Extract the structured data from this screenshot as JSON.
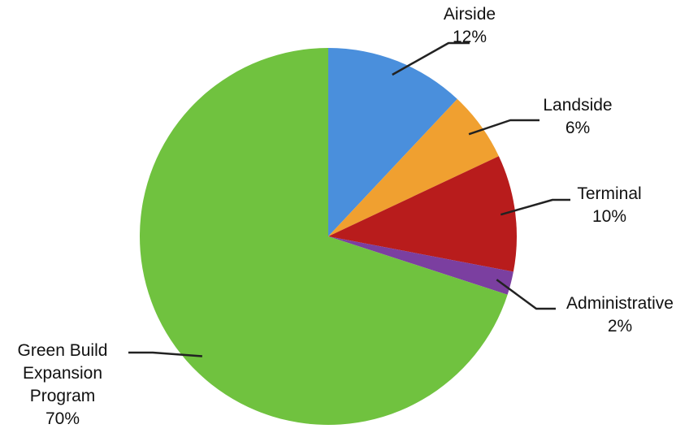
{
  "chart_data": {
    "type": "pie",
    "title": "",
    "start_angle_deg": 90,
    "direction": "clockwise",
    "legend": "none",
    "slices": [
      {
        "label": "Airside",
        "value": 12,
        "value_label": "12%",
        "color": "#4a8fdc"
      },
      {
        "label": "Landside",
        "value": 6,
        "value_label": "6%",
        "color": "#f0a030"
      },
      {
        "label": "Terminal",
        "value": 10,
        "value_label": "10%",
        "color": "#b81c1c"
      },
      {
        "label": "Administrative",
        "value": 2,
        "value_label": "2%",
        "color": "#7b3fa0"
      },
      {
        "label_lines": [
          "Green Build",
          "Expansion",
          "Program"
        ],
        "value": 70,
        "value_label": "70%",
        "color": "#70c23f"
      }
    ]
  }
}
